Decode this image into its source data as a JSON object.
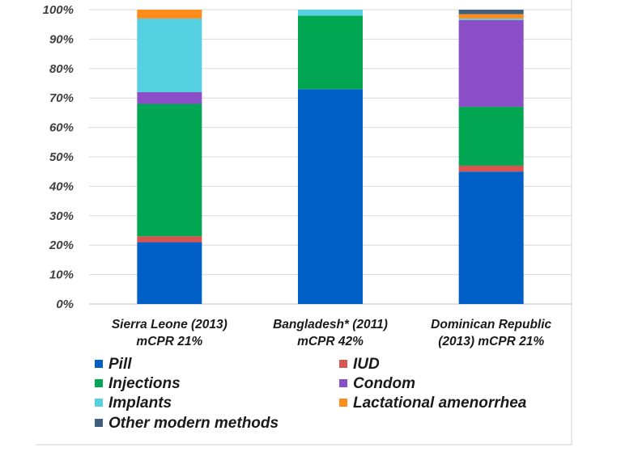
{
  "chart_data": {
    "type": "bar",
    "stacked": true,
    "title": "",
    "xlabel": "",
    "ylabel": "",
    "ylim": [
      0,
      100
    ],
    "y_ticks": [
      "0%",
      "10%",
      "20%",
      "30%",
      "40%",
      "50%",
      "60%",
      "70%",
      "80%",
      "90%",
      "100%"
    ],
    "categories": [
      {
        "line1": "Sierra Leone (2013)",
        "line2": "mCPR 21%"
      },
      {
        "line1": "Bangladesh* (2011)",
        "line2": "mCPR 42%"
      },
      {
        "line1": "Dominican Republic",
        "line2": "(2013) mCPR 21%"
      }
    ],
    "series": [
      {
        "name": "Pill",
        "color": "#0060c8",
        "values": [
          21,
          73,
          45
        ]
      },
      {
        "name": "IUD",
        "color": "#d9534f",
        "values": [
          2,
          0,
          2
        ]
      },
      {
        "name": "Injections",
        "color": "#00a651",
        "values": [
          45,
          25,
          20
        ]
      },
      {
        "name": "Condom",
        "color": "#8a4fc7",
        "values": [
          4,
          0,
          29.5
        ]
      },
      {
        "name": "Implants",
        "color": "#55d0e0",
        "values": [
          25,
          2,
          0.5
        ]
      },
      {
        "name": "Lactational amenorrhea",
        "color": "#ff8c1a",
        "values": [
          3,
          0,
          1.5
        ]
      },
      {
        "name": "Other modern methods",
        "color": "#3f5f7f",
        "values": [
          0,
          0,
          1.5
        ]
      }
    ],
    "grid": true,
    "legend_position": "bottom"
  }
}
